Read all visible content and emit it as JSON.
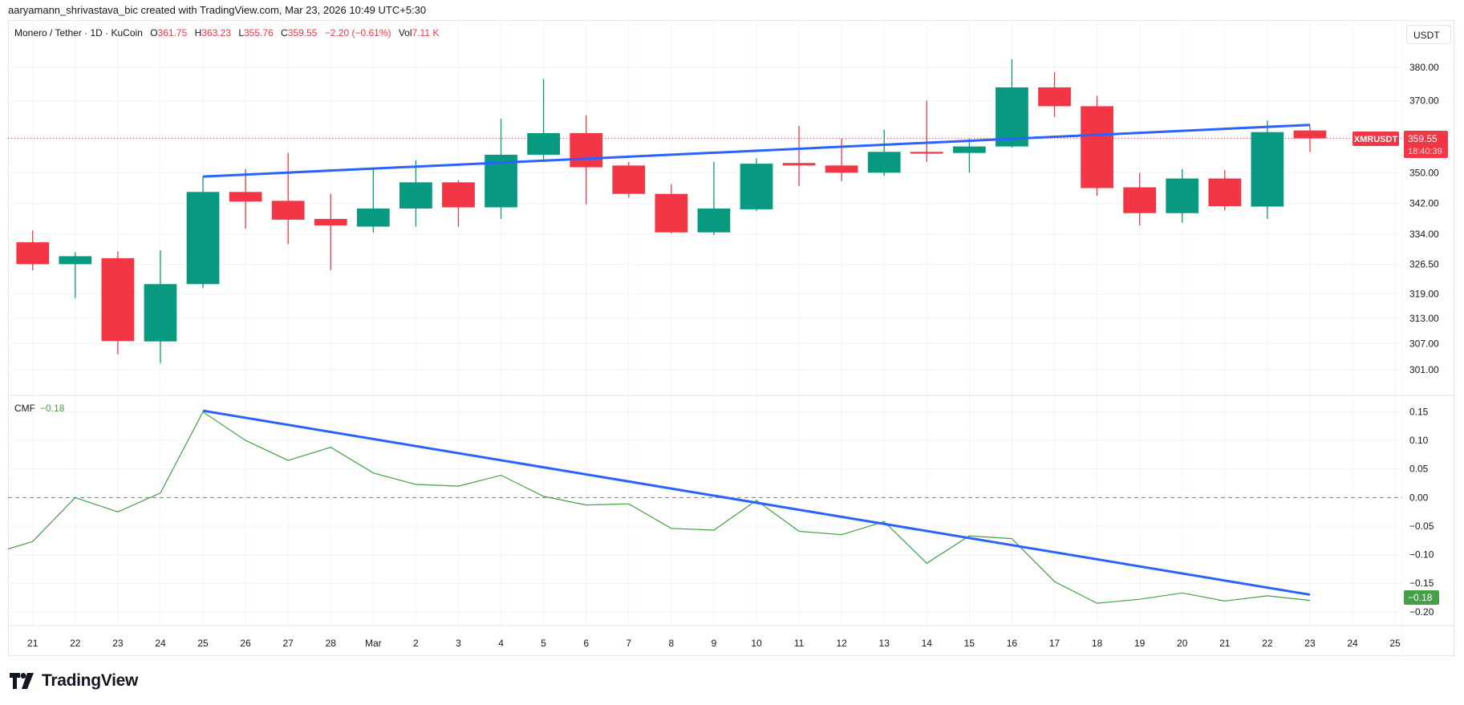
{
  "header": {
    "credit": "aaryamann_shrivastava_bic created with TradingView.com, Mar 23, 2026 10:49 UTC+5:30"
  },
  "legend": {
    "symbol": "Monero / Tether · 1D · KuCoin",
    "o_label": "O",
    "o_value": "361.75",
    "h_label": "H",
    "h_value": "363.23",
    "l_label": "L",
    "l_value": "355.76",
    "c_label": "C",
    "c_value": "359.55",
    "change": "−2.20 (−0.61%)",
    "vol_label": "Vol",
    "vol_value": "7.11 K"
  },
  "currency_button": "USDT",
  "price_label": {
    "ticker": "XMRUSDT",
    "price": "359.55",
    "countdown": "18:40:39"
  },
  "cmf_legend": {
    "name": "CMF",
    "value": "−0.18"
  },
  "cmf_badge": "−0.18",
  "brand": "TradingView",
  "colors": {
    "up": "#089981",
    "down": "#f23645",
    "trendline": "#2962ff",
    "cmf_line": "#43a047",
    "grid": "#f0f3fa",
    "axis_text": "#131722"
  },
  "chart_data": [
    {
      "type": "candlestick",
      "title": "Monero / Tether · 1D · KuCoin",
      "xlabel": "",
      "ylabel": "USDT",
      "ylim": [
        298,
        385
      ],
      "y_ticks": [
        380.0,
        370.0,
        350.0,
        342.0,
        334.0,
        326.5,
        319.0,
        313.0,
        307.0,
        301.0
      ],
      "x_tick_labels": [
        "21",
        "22",
        "23",
        "24",
        "25",
        "26",
        "27",
        "28",
        "Mar",
        "2",
        "3",
        "4",
        "5",
        "6",
        "7",
        "8",
        "9",
        "10",
        "11",
        "12",
        "13",
        "14",
        "15",
        "16",
        "17",
        "18",
        "19",
        "20",
        "21",
        "22",
        "23",
        "24",
        "25"
      ],
      "categories": [
        "Feb 21",
        "Feb 22",
        "Feb 23",
        "Feb 24",
        "Feb 25",
        "Feb 26",
        "Feb 27",
        "Feb 28",
        "Mar 1",
        "Mar 2",
        "Mar 3",
        "Mar 4",
        "Mar 5",
        "Mar 6",
        "Mar 7",
        "Mar 8",
        "Mar 9",
        "Mar 10",
        "Mar 11",
        "Mar 12",
        "Mar 13",
        "Mar 14",
        "Mar 15",
        "Mar 16",
        "Mar 17",
        "Mar 18",
        "Mar 19",
        "Mar 20",
        "Mar 21",
        "Mar 22",
        "Mar 23"
      ],
      "ohlc": [
        [
          332.0,
          335.0,
          325.0,
          326.5
        ],
        [
          326.5,
          329.5,
          318.0,
          328.5
        ],
        [
          328.0,
          329.7,
          304.5,
          307.6
        ],
        [
          307.5,
          330.0,
          302.5,
          321.5
        ],
        [
          321.5,
          349.0,
          320.5,
          345.0
        ],
        [
          345.0,
          351.0,
          335.5,
          342.5
        ],
        [
          342.7,
          355.5,
          331.5,
          337.8
        ],
        [
          338.0,
          344.5,
          325.0,
          336.3
        ],
        [
          336.0,
          351.0,
          334.5,
          340.7
        ],
        [
          340.7,
          353.5,
          336.0,
          347.5
        ],
        [
          347.5,
          348.0,
          336.0,
          341.0
        ],
        [
          341.0,
          365.0,
          338.0,
          355.0
        ],
        [
          355.0,
          376.5,
          353.0,
          361.0
        ],
        [
          361.0,
          366.0,
          341.8,
          351.5
        ],
        [
          352.0,
          353.0,
          343.5,
          344.5
        ],
        [
          344.5,
          347.0,
          334.2,
          334.5
        ],
        [
          334.5,
          353.0,
          333.8,
          340.7
        ],
        [
          340.5,
          354.0,
          340.0,
          352.5
        ],
        [
          352.7,
          363.0,
          346.5,
          352.0
        ],
        [
          352.0,
          359.5,
          347.8,
          350.0
        ],
        [
          350.0,
          362.0,
          349.2,
          355.8
        ],
        [
          355.8,
          370.0,
          353.0,
          355.3
        ],
        [
          355.5,
          359.5,
          350.0,
          357.3
        ],
        [
          357.3,
          382.5,
          357.0,
          374.0
        ],
        [
          374.0,
          378.5,
          365.5,
          368.5
        ],
        [
          368.5,
          371.5,
          344.0,
          346.0
        ],
        [
          346.2,
          350.0,
          336.3,
          339.5
        ],
        [
          339.5,
          351.0,
          337.0,
          348.5
        ],
        [
          348.5,
          350.7,
          340.2,
          341.3
        ],
        [
          341.2,
          364.5,
          338.0,
          361.3
        ],
        [
          361.75,
          363.23,
          355.76,
          359.55
        ]
      ],
      "last_price": 359.55,
      "trendline": {
        "from": {
          "index": 4,
          "price": 349.0
        },
        "to": {
          "index": 30,
          "price": 363.3
        }
      }
    },
    {
      "type": "line",
      "title": "CMF",
      "ylim": [
        -0.22,
        0.17
      ],
      "y_ticks": [
        0.15,
        0.1,
        0.05,
        0.0,
        -0.05,
        -0.1,
        -0.15,
        -0.2
      ],
      "zero_line": 0.0,
      "series": [
        {
          "name": "CMF",
          "values": [
            -0.077,
            0.0,
            -0.025,
            0.008,
            0.15,
            0.1,
            0.065,
            0.088,
            0.043,
            0.023,
            0.02,
            0.039,
            0.002,
            -0.013,
            -0.011,
            -0.054,
            -0.057,
            -0.005,
            -0.059,
            -0.065,
            -0.042,
            -0.115,
            -0.067,
            -0.072,
            -0.147,
            -0.185,
            -0.178,
            -0.167,
            -0.181,
            -0.172,
            -0.18
          ]
        }
      ],
      "start_value_offscreen": -0.09,
      "trendline": {
        "from": {
          "index": 4,
          "value": 0.152
        },
        "to": {
          "index": 30,
          "value": -0.17
        }
      },
      "last_value": -0.18
    }
  ]
}
